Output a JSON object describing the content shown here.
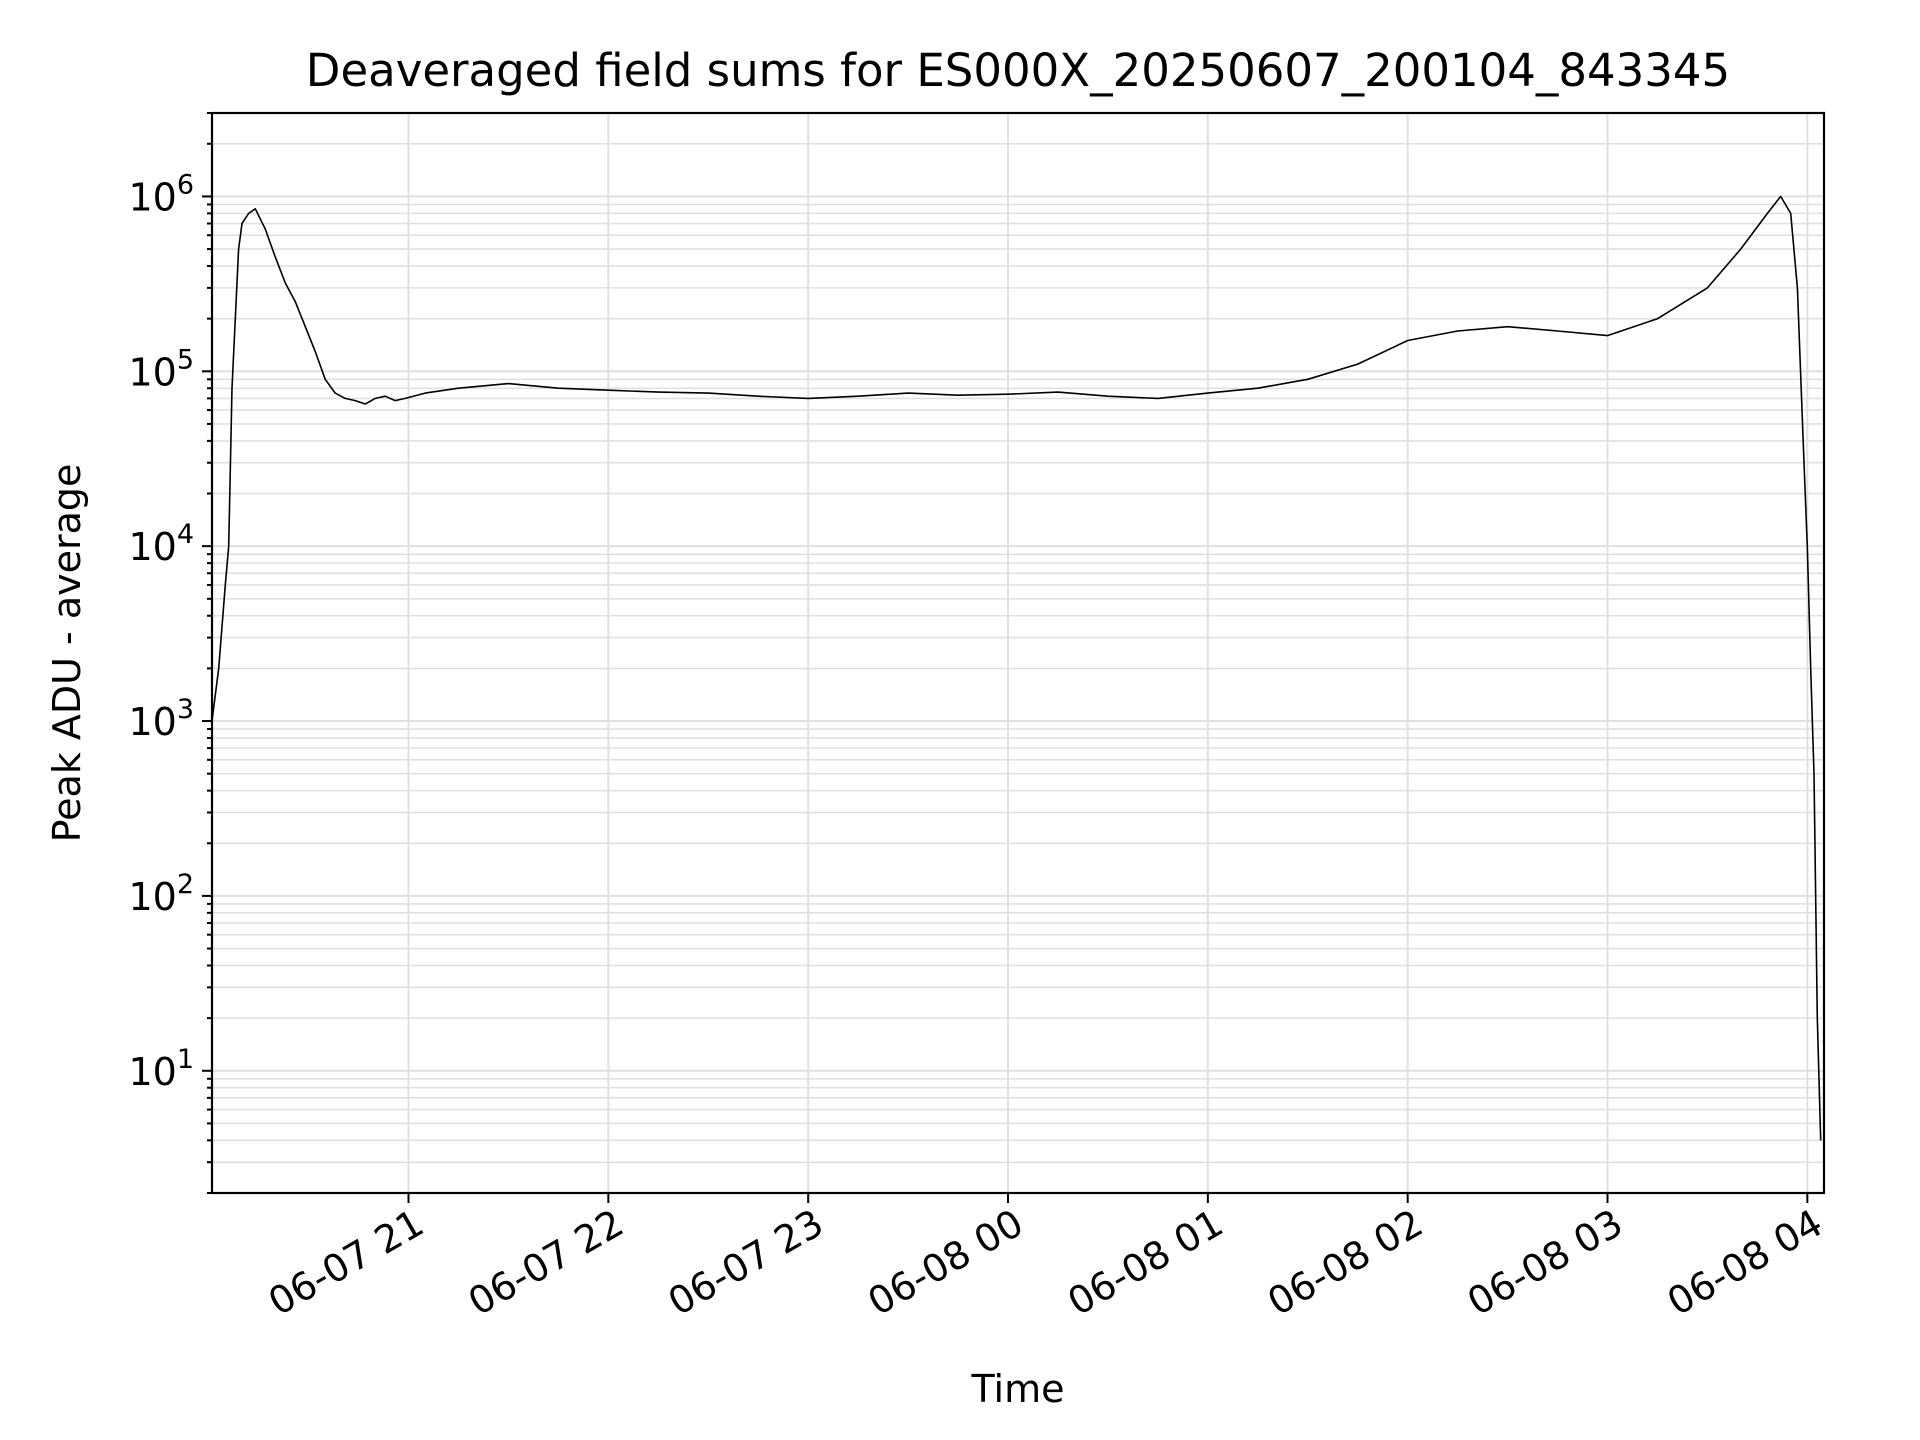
{
  "chart_data": {
    "type": "line",
    "title": "Deaveraged field sums for ES000X_20250607_200104_843345",
    "xlabel": "Time",
    "ylabel": "Peak ADU - average",
    "yscale": "log",
    "ylim": [
      2,
      3000000
    ],
    "xlim": [
      "2025-06-07 20:01",
      "2025-06-08 04:05"
    ],
    "grid": true,
    "line_color": "#000000",
    "x_ticks": [
      {
        "value": "2025-06-07 21:00",
        "label": "06-07 21"
      },
      {
        "value": "2025-06-07 22:00",
        "label": "06-07 22"
      },
      {
        "value": "2025-06-07 23:00",
        "label": "06-07 23"
      },
      {
        "value": "2025-06-08 00:00",
        "label": "06-08 00"
      },
      {
        "value": "2025-06-08 01:00",
        "label": "06-08 01"
      },
      {
        "value": "2025-06-08 02:00",
        "label": "06-08 02"
      },
      {
        "value": "2025-06-08 03:00",
        "label": "06-08 03"
      },
      {
        "value": "2025-06-08 04:00",
        "label": "06-08 04"
      }
    ],
    "y_ticks": [
      {
        "value": 10,
        "base": "10",
        "exp": "1"
      },
      {
        "value": 100,
        "base": "10",
        "exp": "2"
      },
      {
        "value": 1000,
        "base": "10",
        "exp": "3"
      },
      {
        "value": 10000,
        "base": "10",
        "exp": "4"
      },
      {
        "value": 100000,
        "base": "10",
        "exp": "5"
      },
      {
        "value": 1000000,
        "base": "10",
        "exp": "6"
      }
    ],
    "series": [
      {
        "x": [
          "2025-06-07 20:01",
          "2025-06-07 20:03",
          "2025-06-07 20:05",
          "2025-06-07 20:06",
          "2025-06-07 20:07",
          "2025-06-07 20:09",
          "2025-06-07 20:10",
          "2025-06-07 20:12",
          "2025-06-07 20:14",
          "2025-06-07 20:17",
          "2025-06-07 20:20",
          "2025-06-07 20:23",
          "2025-06-07 20:26",
          "2025-06-07 20:29",
          "2025-06-07 20:32",
          "2025-06-07 20:35",
          "2025-06-07 20:38",
          "2025-06-07 20:41",
          "2025-06-07 20:44",
          "2025-06-07 20:47",
          "2025-06-07 20:50",
          "2025-06-07 20:53",
          "2025-06-07 20:56",
          "2025-06-07 20:59",
          "2025-06-07 21:05",
          "2025-06-07 21:15",
          "2025-06-07 21:30",
          "2025-06-07 21:45",
          "2025-06-07 22:00",
          "2025-06-07 22:15",
          "2025-06-07 22:30",
          "2025-06-07 22:45",
          "2025-06-07 23:00",
          "2025-06-07 23:15",
          "2025-06-07 23:30",
          "2025-06-07 23:45",
          "2025-06-08 00:00",
          "2025-06-08 00:15",
          "2025-06-08 00:30",
          "2025-06-08 00:45",
          "2025-06-08 01:00",
          "2025-06-08 01:15",
          "2025-06-08 01:30",
          "2025-06-08 01:45",
          "2025-06-08 02:00",
          "2025-06-08 02:15",
          "2025-06-08 02:30",
          "2025-06-08 02:45",
          "2025-06-08 03:00",
          "2025-06-08 03:15",
          "2025-06-08 03:30",
          "2025-06-08 03:40",
          "2025-06-08 03:48",
          "2025-06-08 03:52",
          "2025-06-08 03:55",
          "2025-06-08 03:57",
          "2025-06-08 03:59",
          "2025-06-08 04:00",
          "2025-06-08 04:01",
          "2025-06-08 04:02",
          "2025-06-08 04:03",
          "2025-06-08 04:04"
        ],
        "values": [
          1000,
          2000,
          6000,
          10000,
          80000,
          500000,
          700000,
          800000,
          850000,
          650000,
          450000,
          320000,
          250000,
          180000,
          130000,
          90000,
          75000,
          70000,
          68000,
          65000,
          70000,
          72000,
          68000,
          70000,
          75000,
          80000,
          85000,
          80000,
          78000,
          76000,
          75000,
          72000,
          70000,
          72000,
          75000,
          73000,
          74000,
          76000,
          72000,
          70000,
          75000,
          80000,
          90000,
          110000,
          150000,
          170000,
          180000,
          170000,
          160000,
          200000,
          300000,
          500000,
          800000,
          1000000,
          800000,
          300000,
          30000,
          10000,
          2000,
          500,
          20,
          4
        ]
      }
    ]
  }
}
